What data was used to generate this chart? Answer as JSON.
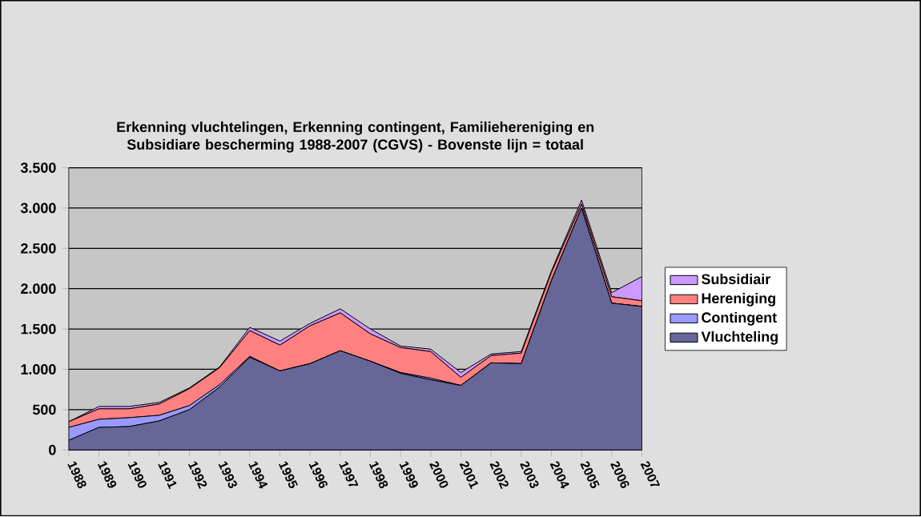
{
  "chart_data": {
    "type": "area",
    "stacked": true,
    "title": "Erkenning vluchtelingen, Erkenning contingent, Familiehereniging en Subsidiare bescherming 1988-2007 (CGVS) - Bovenste lijn = totaal",
    "categories": [
      "1988",
      "1989",
      "1990",
      "1991",
      "1992",
      "1993",
      "1994",
      "1995",
      "1996",
      "1997",
      "1998",
      "1999",
      "2000",
      "2001",
      "2002",
      "2003",
      "2004",
      "2005",
      "2006",
      "2007"
    ],
    "series": [
      {
        "name": "Vluchteling",
        "color": "#666699",
        "values": [
          120,
          280,
          290,
          360,
          500,
          780,
          1150,
          980,
          1070,
          1230,
          1100,
          950,
          870,
          800,
          1080,
          1070,
          2100,
          3000,
          1820,
          1780
        ]
      },
      {
        "name": "Contingent",
        "color": "#9999ff",
        "values": [
          160,
          100,
          110,
          70,
          50,
          30,
          10,
          0,
          0,
          0,
          0,
          10,
          20,
          0,
          0,
          0,
          0,
          0,
          0,
          0
        ]
      },
      {
        "name": "Hereniging",
        "color": "#ff8080",
        "values": [
          70,
          130,
          110,
          140,
          210,
          210,
          320,
          320,
          470,
          470,
          340,
          310,
          330,
          100,
          90,
          130,
          100,
          50,
          80,
          70
        ]
      },
      {
        "name": "Subsidiair",
        "color": "#cc99ff",
        "values": [
          0,
          30,
          30,
          20,
          10,
          10,
          40,
          50,
          30,
          50,
          60,
          20,
          30,
          60,
          20,
          20,
          20,
          50,
          50,
          300
        ]
      }
    ],
    "ylim": [
      0,
      3500
    ],
    "yticks": [
      0,
      500,
      {
        "value": 1000,
        "label": "1.000"
      },
      {
        "value": 1500,
        "label": "1.500"
      },
      {
        "value": 2000,
        "label": "2.000"
      },
      {
        "value": 2500,
        "label": "2.500"
      },
      {
        "value": 3000,
        "label": "3.000"
      },
      {
        "value": 3500,
        "label": "3.500"
      }
    ],
    "grid": "y",
    "legend": "right"
  }
}
